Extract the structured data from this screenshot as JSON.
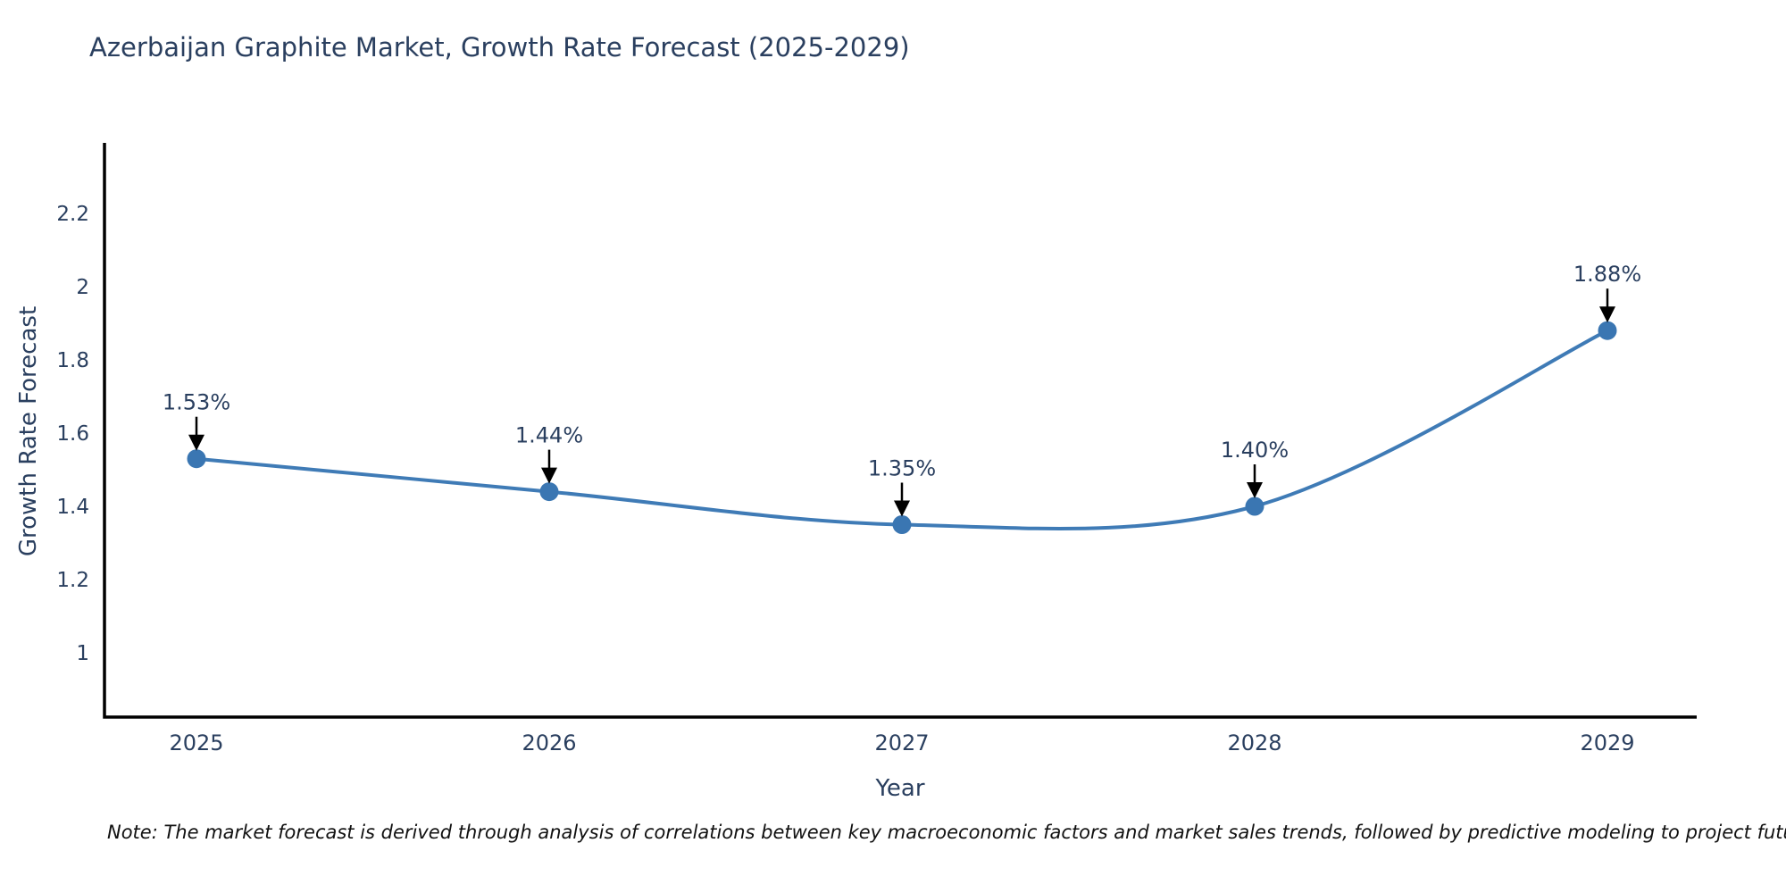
{
  "chart_data": {
    "type": "line",
    "title": "Azerbaijan Graphite Market, Growth Rate Forecast (2025-2029)",
    "xlabel": "Year",
    "ylabel": "Growth Rate Forecast",
    "categories": [
      "2025",
      "2026",
      "2027",
      "2028",
      "2029"
    ],
    "series": [
      {
        "name": "Growth Rate Forecast",
        "values": [
          1.53,
          1.44,
          1.35,
          1.4,
          1.88
        ]
      }
    ],
    "annotations": [
      "1.53%",
      "1.44%",
      "1.35%",
      "1.40%",
      "1.88%"
    ],
    "yticks": [
      {
        "value": 1.0,
        "label": "1"
      },
      {
        "value": 1.2,
        "label": "1.2"
      },
      {
        "value": 1.4,
        "label": "1.4"
      },
      {
        "value": 1.6,
        "label": "1.6"
      },
      {
        "value": 1.8,
        "label": "1.8"
      },
      {
        "value": 2.0,
        "label": "2"
      },
      {
        "value": 2.2,
        "label": "2.2"
      }
    ],
    "ylim": [
      0.83,
      2.4
    ],
    "grid": false,
    "legend": "none",
    "curve": "spline",
    "colors": {
      "line": "#3f7bb6",
      "marker": "#3a76b2",
      "axis": "#000000",
      "text": "#2a3f5f",
      "arrow": "#000000"
    }
  },
  "note": {
    "text": "Note: The market forecast is derived through analysis of correlations between key macroeconomic factors and market sales trends, followed by predictive modeling to project future sales"
  }
}
